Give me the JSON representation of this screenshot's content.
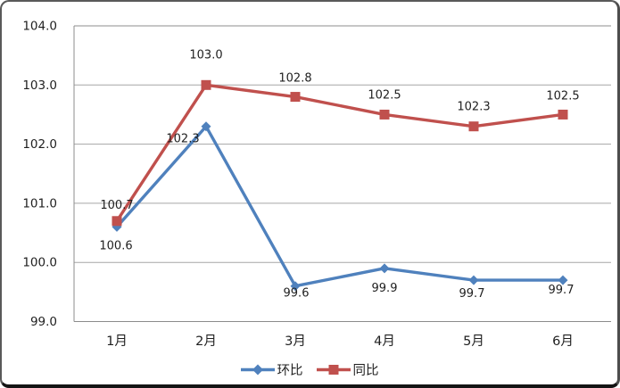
{
  "chart_data": {
    "type": "line",
    "categories": [
      "1月",
      "2月",
      "3月",
      "4月",
      "5月",
      "6月"
    ],
    "series": [
      {
        "name": "环比",
        "marker": "diamond",
        "color": "#4f81bd",
        "values": [
          100.6,
          102.3,
          99.6,
          99.9,
          99.7,
          99.7
        ],
        "labels": [
          "100.6",
          "102.3",
          "99.6",
          "99.9",
          "99.7",
          "99.7"
        ]
      },
      {
        "name": "同比",
        "marker": "square",
        "color": "#c0504d",
        "values": [
          100.7,
          103.0,
          102.8,
          102.5,
          102.3,
          102.5
        ],
        "labels": [
          "100.7",
          "103.0",
          "102.8",
          "102.5",
          "102.3",
          "102.5"
        ]
      }
    ],
    "ylim": [
      99.0,
      104.0
    ],
    "ytick_step": 1.0,
    "ytick_labels": [
      "99.0",
      "100.0",
      "101.0",
      "102.0",
      "103.0",
      "104.0"
    ],
    "grid": true,
    "grid_color": "#a6a6a6",
    "axis_color": "#8c8c8c",
    "label_color": "#1f1f1f",
    "legend_position": "bottom",
    "data_labels": true,
    "title": "",
    "xlabel": "",
    "ylabel": ""
  }
}
